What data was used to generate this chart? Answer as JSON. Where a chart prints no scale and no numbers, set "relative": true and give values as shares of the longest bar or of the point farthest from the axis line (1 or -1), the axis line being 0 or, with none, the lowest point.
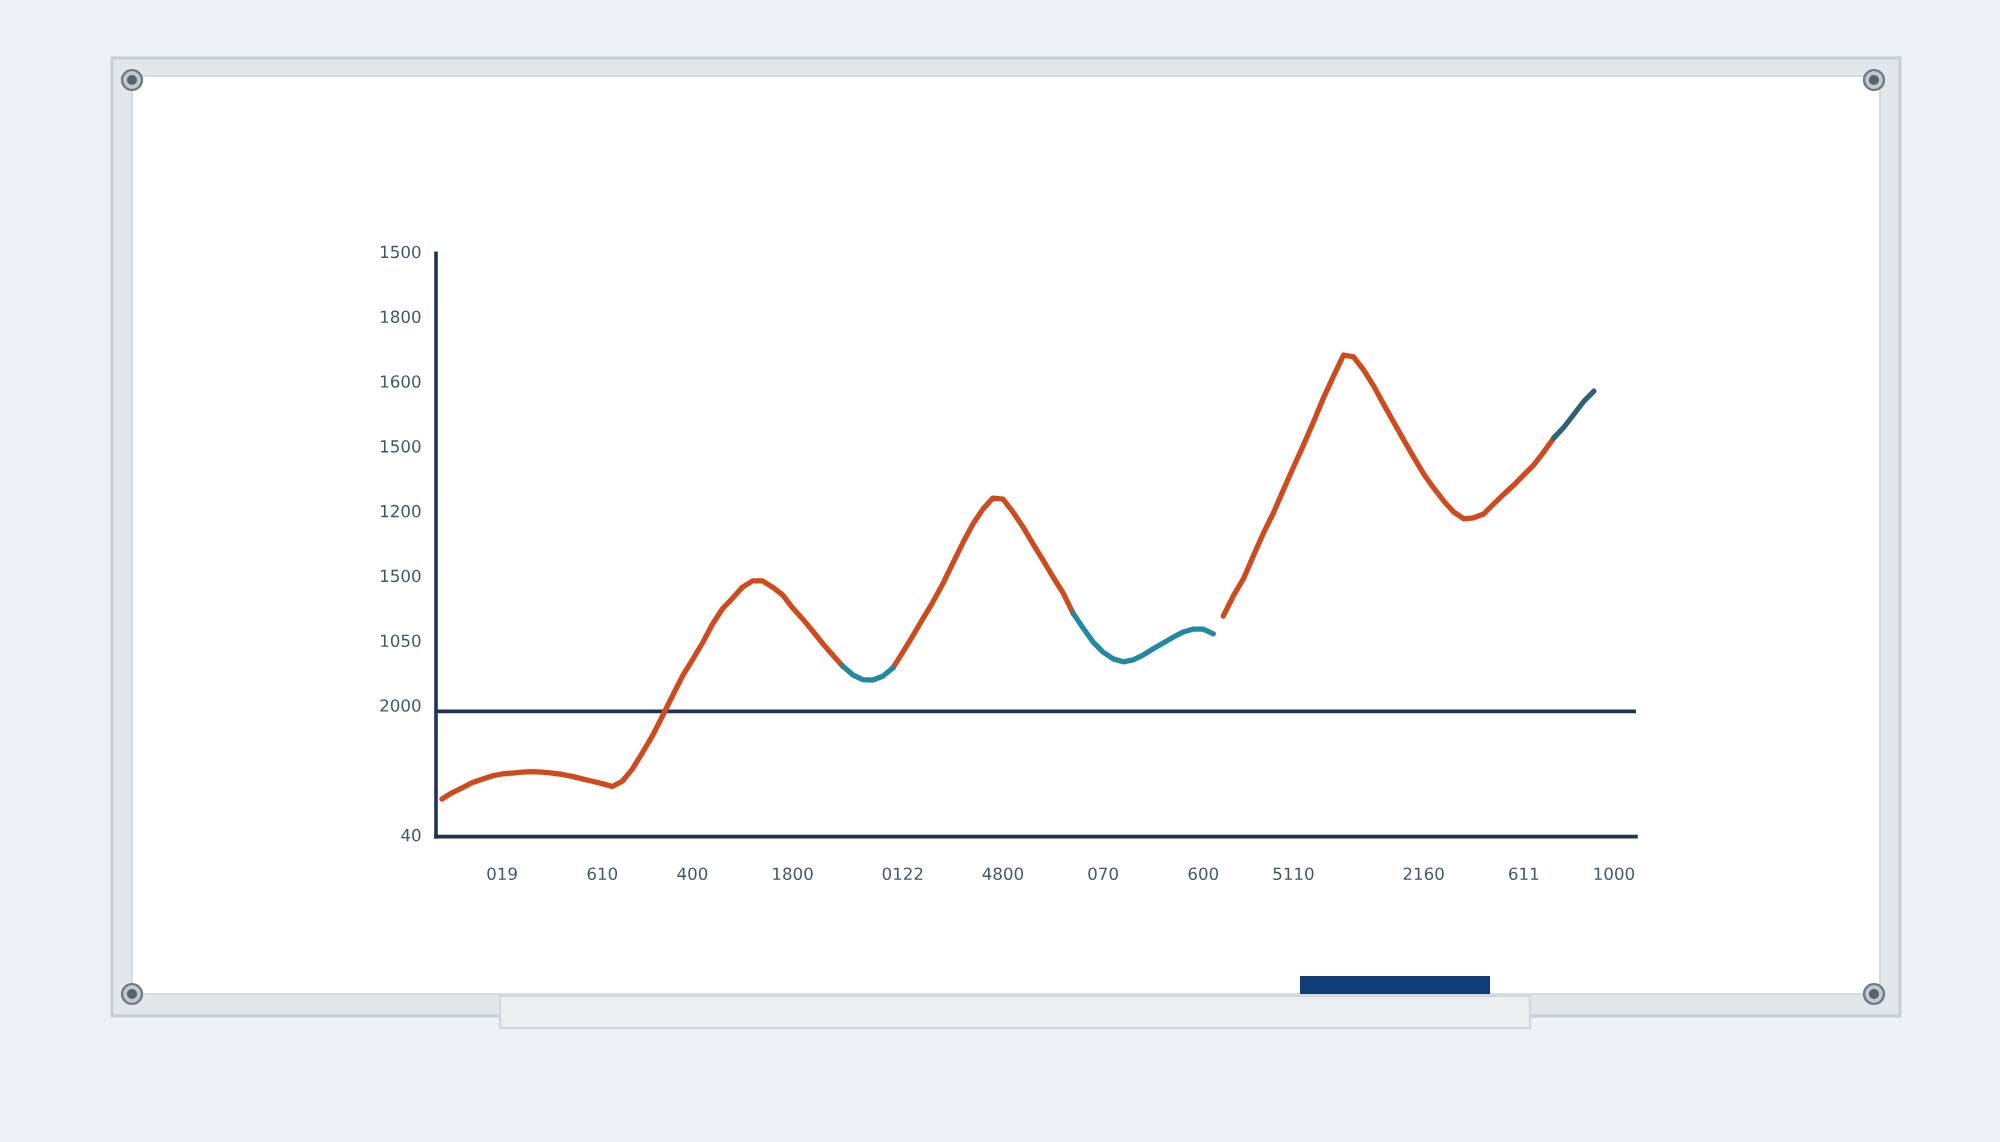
{
  "chart_data": {
    "type": "line",
    "relative": true,
    "categories": [
      null,
      null,
      null,
      null,
      null,
      null,
      "019",
      null,
      null,
      null,
      null,
      null,
      null,
      null,
      null,
      null,
      "610",
      null,
      null,
      null,
      null,
      null,
      null,
      null,
      null,
      "400",
      null,
      null,
      null,
      null,
      null,
      null,
      null,
      null,
      null,
      "1800",
      null,
      null,
      null,
      null,
      null,
      null,
      null,
      null,
      null,
      null,
      "0122",
      null,
      null,
      null,
      null,
      null,
      null,
      null,
      null,
      null,
      "4800",
      null,
      null,
      null,
      null,
      null,
      null,
      null,
      null,
      null,
      "070",
      null,
      null,
      null,
      null,
      null,
      null,
      null,
      null,
      null,
      "600",
      null,
      null,
      null,
      null,
      null,
      null,
      null,
      null,
      "5110",
      null,
      null,
      null,
      null,
      null,
      null,
      null,
      null,
      null,
      null,
      null,
      null,
      "2160",
      null,
      null,
      null,
      null,
      null,
      null,
      null,
      null,
      null,
      "611",
      null,
      null,
      null,
      null,
      null,
      null,
      null,
      null,
      "1000"
    ],
    "series": [
      {
        "color": "#cf4a1c",
        "values": [
          0.078,
          0.091,
          0.101,
          0.112,
          0.119,
          0.126,
          0.13,
          0.132,
          0.134,
          0.135,
          0.134,
          0.132,
          0.129,
          0.125,
          0.12,
          0.115,
          0.11,
          0.104,
          0.115,
          0.14,
          0.174,
          0.209,
          0.25,
          0.292,
          0.333,
          0.367,
          0.402,
          0.441,
          0.473,
          0.495,
          0.518,
          0.531,
          0.531,
          0.518,
          0.502,
          0.475,
          0.452,
          0.427,
          0.401,
          0.377,
          0.354,
          null,
          null,
          null,
          null,
          0.35,
          0.383,
          0.417,
          0.452,
          0.487,
          0.525,
          0.568,
          0.61,
          0.649,
          0.68,
          0.703,
          0.701,
          0.674,
          0.643,
          0.608,
          0.574,
          0.539,
          0.506,
          0.464,
          null,
          null,
          null,
          null,
          null,
          null,
          null,
          null,
          null,
          null,
          null,
          null,
          null,
          null,
          0.458,
          0.5,
          0.535,
          0.583,
          0.63,
          0.672,
          0.72,
          0.767,
          0.813,
          0.861,
          0.911,
          0.956,
          1,
          0.996,
          0.969,
          0.936,
          0.898,
          0.861,
          0.824,
          0.788,
          0.753,
          0.724,
          0.697,
          0.674,
          0.66,
          0.662,
          0.67,
          0.691,
          0.711,
          0.73,
          0.751,
          0.772,
          0.799,
          0.828,
          null,
          null,
          null,
          null,
          null,
          null
        ]
      },
      {
        "color": "#2389a3",
        "values": [
          null,
          null,
          null,
          null,
          null,
          null,
          null,
          null,
          null,
          null,
          null,
          null,
          null,
          null,
          null,
          null,
          null,
          null,
          null,
          null,
          null,
          null,
          null,
          null,
          null,
          null,
          null,
          null,
          null,
          null,
          null,
          null,
          null,
          null,
          null,
          null,
          null,
          null,
          null,
          null,
          0.354,
          0.336,
          0.326,
          0.325,
          0.333,
          0.35,
          null,
          null,
          null,
          null,
          null,
          null,
          null,
          null,
          null,
          null,
          null,
          null,
          null,
          null,
          null,
          null,
          null,
          0.464,
          0.433,
          0.404,
          0.383,
          0.369,
          0.363,
          0.367,
          0.377,
          0.39,
          0.402,
          0.414,
          0.425,
          0.431,
          0.431,
          0.421,
          null,
          null,
          null,
          null,
          null,
          null,
          null,
          null,
          null,
          null,
          null,
          null,
          null,
          null,
          null,
          null,
          null,
          null,
          null,
          null,
          null,
          null,
          null,
          null,
          null,
          null,
          null,
          null,
          null,
          null,
          null,
          null,
          null,
          null,
          null,
          null,
          null,
          null,
          null,
          null
        ]
      },
      {
        "color": "#2f6275",
        "values": [
          null,
          null,
          null,
          null,
          null,
          null,
          null,
          null,
          null,
          null,
          null,
          null,
          null,
          null,
          null,
          null,
          null,
          null,
          null,
          null,
          null,
          null,
          null,
          null,
          null,
          null,
          null,
          null,
          null,
          null,
          null,
          null,
          null,
          null,
          null,
          null,
          null,
          null,
          null,
          null,
          null,
          null,
          null,
          null,
          null,
          null,
          null,
          null,
          null,
          null,
          null,
          null,
          null,
          null,
          null,
          null,
          null,
          null,
          null,
          null,
          null,
          null,
          null,
          null,
          null,
          null,
          null,
          null,
          null,
          null,
          null,
          null,
          null,
          null,
          null,
          null,
          null,
          null,
          null,
          null,
          null,
          null,
          null,
          null,
          null,
          null,
          null,
          null,
          null,
          null,
          null,
          null,
          null,
          null,
          null,
          null,
          null,
          null,
          null,
          null,
          null,
          null,
          null,
          null,
          null,
          null,
          null,
          null,
          null,
          null,
          null,
          0.828,
          0.85,
          0.877,
          0.904,
          0.925,
          null,
          null
        ]
      }
    ],
    "annotations": [
      "1500",
      "1800",
      "1600",
      "1500",
      "1200",
      "1500",
      "1050",
      "2000",
      "40"
    ],
    "ref_lines": [
      {
        "axis": "y",
        "value": 0.26,
        "color": "#1c3557"
      }
    ],
    "line_style": "solid"
  }
}
